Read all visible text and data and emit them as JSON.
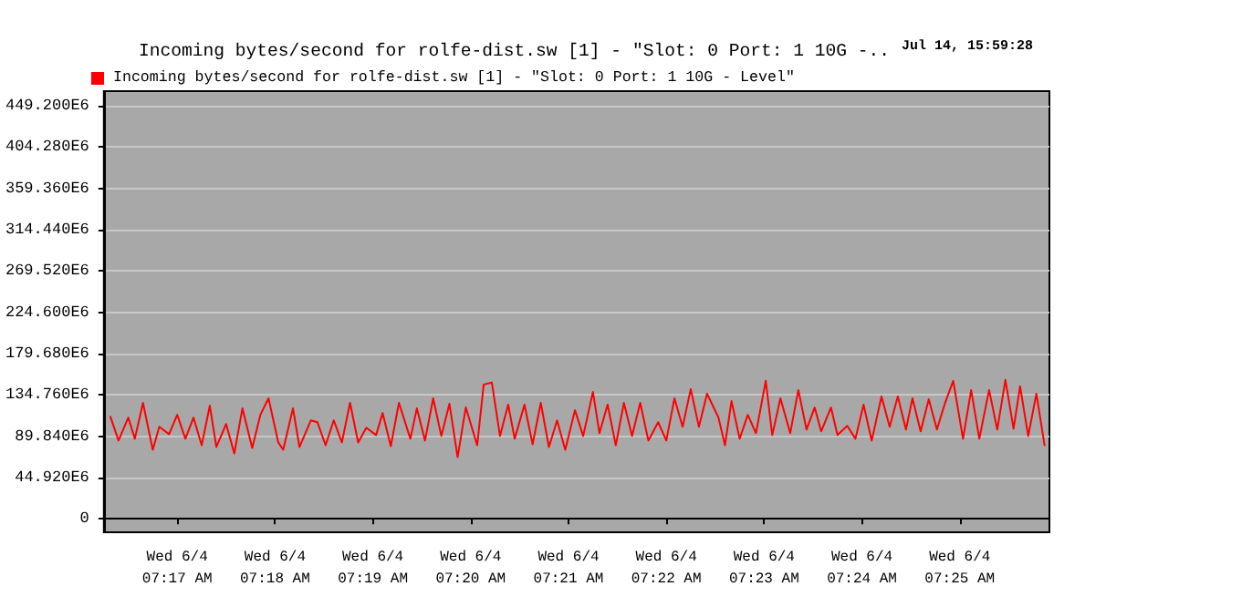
{
  "chart_data": {
    "type": "line",
    "title": "Incoming bytes/second for rolfe-dist.sw [1] - \"Slot: 0 Port: 1 10G -..",
    "annotations": [
      "Jul 14, 15:59:28"
    ],
    "legend": "top left",
    "grid": "y",
    "marker": "none",
    "line_style": "solid",
    "xlim": [
      "--06-04T07:16:15",
      "--06-04T07:25:55"
    ],
    "xticks": [
      {
        "value": "--06-04T07:17",
        "label": "Wed 6/4\n07:17 AM"
      },
      {
        "value": "--06-04T07:18",
        "label": "Wed 6/4\n07:18 AM"
      },
      {
        "value": "--06-04T07:19",
        "label": "Wed 6/4\n07:19 AM"
      },
      {
        "value": "--06-04T07:20",
        "label": "Wed 6/4\n07:20 AM"
      },
      {
        "value": "--06-04T07:21",
        "label": "Wed 6/4\n07:21 AM"
      },
      {
        "value": "--06-04T07:22",
        "label": "Wed 6/4\n07:22 AM"
      },
      {
        "value": "--06-04T07:23",
        "label": "Wed 6/4\n07:23 AM"
      },
      {
        "value": "--06-04T07:24",
        "label": "Wed 6/4\n07:24 AM"
      },
      {
        "value": "--06-04T07:25",
        "label": "Wed 6/4\n07:25 AM"
      }
    ],
    "ylim": [
      -14700000,
      465000000
    ],
    "yticks": [
      {
        "value": 0,
        "label": "0"
      },
      {
        "value": 44920000,
        "label": "44.920E6"
      },
      {
        "value": 89840000,
        "label": "89.840E6"
      },
      {
        "value": 134760000,
        "label": "134.760E6"
      },
      {
        "value": 179680000,
        "label": "179.680E6"
      },
      {
        "value": 224600000,
        "label": "224.600E6"
      },
      {
        "value": 269520000,
        "label": "269.520E6"
      },
      {
        "value": 314440000,
        "label": "314.440E6"
      },
      {
        "value": 359360000,
        "label": "359.360E6"
      },
      {
        "value": 404280000,
        "label": "404.280E6"
      },
      {
        "value": 449200000,
        "label": "449.200E6"
      }
    ],
    "series": [
      {
        "name": "Incoming bytes/second for rolfe-dist.sw [1] - \"Slot: 0 Port: 1 10G - Level\"",
        "color": "#ff0000",
        "x": [
          "--06-04T07:16:19",
          "--06-04T07:16:24",
          "--06-04T07:16:30",
          "--06-04T07:16:34",
          "--06-04T07:16:39",
          "--06-04T07:16:45",
          "--06-04T07:16:49",
          "--06-04T07:16:55",
          "--06-04T07:17:00",
          "--06-04T07:17:05",
          "--06-04T07:17:10",
          "--06-04T07:17:15",
          "--06-04T07:17:20",
          "--06-04T07:17:24",
          "--06-04T07:17:30",
          "--06-04T07:17:35",
          "--06-04T07:17:40",
          "--06-04T07:17:46",
          "--06-04T07:17:51",
          "--06-04T07:17:56",
          "--06-04T07:18:02",
          "--06-04T07:18:05",
          "--06-04T07:18:11",
          "--06-04T07:18:15",
          "--06-04T07:18:22",
          "--06-04T07:18:26",
          "--06-04T07:18:31",
          "--06-04T07:18:36",
          "--06-04T07:18:41",
          "--06-04T07:18:46",
          "--06-04T07:18:51",
          "--06-04T07:18:56",
          "--06-04T07:19:02",
          "--06-04T07:19:06",
          "--06-04T07:19:11",
          "--06-04T07:19:16",
          "--06-04T07:19:23",
          "--06-04T07:19:27",
          "--06-04T07:19:32",
          "--06-04T07:19:37",
          "--06-04T07:19:42",
          "--06-04T07:19:47",
          "--06-04T07:19:52",
          "--06-04T07:19:57",
          "--06-04T07:20:04",
          "--06-04T07:20:08",
          "--06-04T07:20:13",
          "--06-04T07:20:18",
          "--06-04T07:20:23",
          "--06-04T07:20:27",
          "--06-04T07:20:33",
          "--06-04T07:20:38",
          "--06-04T07:20:43",
          "--06-04T07:20:48",
          "--06-04T07:20:53",
          "--06-04T07:20:58",
          "--06-04T07:21:04",
          "--06-04T07:21:09",
          "--06-04T07:21:15",
          "--06-04T07:21:19",
          "--06-04T07:21:24",
          "--06-04T07:21:29",
          "--06-04T07:21:34",
          "--06-04T07:21:39",
          "--06-04T07:21:44",
          "--06-04T07:21:49",
          "--06-04T07:21:55",
          "--06-04T07:22:00",
          "--06-04T07:22:05",
          "--06-04T07:22:10",
          "--06-04T07:22:15",
          "--06-04T07:22:20",
          "--06-04T07:22:25",
          "--06-04T07:22:32",
          "--06-04T07:22:36",
          "--06-04T07:22:40",
          "--06-04T07:22:45",
          "--06-04T07:22:50",
          "--06-04T07:22:55",
          "--06-04T07:23:01",
          "--06-04T07:23:05",
          "--06-04T07:23:10",
          "--06-04T07:23:16",
          "--06-04T07:23:21",
          "--06-04T07:23:26",
          "--06-04T07:23:31",
          "--06-04T07:23:35",
          "--06-04T07:23:41",
          "--06-04T07:23:45",
          "--06-04T07:23:51",
          "--06-04T07:23:56",
          "--06-04T07:24:01",
          "--06-04T07:24:06",
          "--06-04T07:24:12",
          "--06-04T07:24:17",
          "--06-04T07:24:22",
          "--06-04T07:24:27",
          "--06-04T07:24:31",
          "--06-04T07:24:36",
          "--06-04T07:24:41",
          "--06-04T07:24:46",
          "--06-04T07:24:51",
          "--06-04T07:24:56",
          "--06-04T07:25:02",
          "--06-04T07:25:07",
          "--06-04T07:25:12",
          "--06-04T07:25:18",
          "--06-04T07:25:23",
          "--06-04T07:25:28",
          "--06-04T07:25:33",
          "--06-04T07:25:37",
          "--06-04T07:25:42",
          "--06-04T07:25:47",
          "--06-04T07:25:52"
        ],
        "values": [
          111000000,
          85000000,
          110000000,
          87000000,
          126000000,
          75000000,
          100000000,
          92000000,
          113000000,
          87000000,
          110000000,
          80000000,
          123000000,
          78000000,
          103000000,
          71000000,
          120000000,
          77000000,
          113000000,
          131000000,
          83000000,
          75000000,
          120000000,
          78000000,
          107000000,
          105000000,
          80000000,
          107000000,
          83000000,
          126000000,
          83000000,
          99000000,
          91000000,
          115000000,
          79000000,
          126000000,
          87000000,
          120000000,
          85000000,
          131000000,
          90000000,
          125000000,
          67000000,
          121000000,
          80000000,
          146000000,
          148000000,
          90000000,
          124000000,
          87000000,
          124000000,
          81000000,
          126000000,
          78000000,
          107000000,
          75000000,
          118000000,
          90000000,
          138000000,
          93000000,
          124000000,
          80000000,
          126000000,
          90000000,
          126000000,
          85000000,
          105000000,
          85000000,
          131000000,
          100000000,
          141000000,
          100000000,
          136000000,
          110000000,
          80000000,
          128000000,
          87000000,
          113000000,
          93000000,
          150000000,
          91000000,
          131000000,
          93000000,
          140000000,
          97000000,
          121000000,
          95000000,
          121000000,
          91000000,
          101000000,
          87000000,
          124000000,
          85000000,
          133000000,
          100000000,
          133000000,
          97000000,
          131000000,
          95000000,
          130000000,
          97000000,
          126000000,
          150000000,
          87000000,
          140000000,
          87000000,
          140000000,
          97000000,
          151000000,
          98000000,
          144000000,
          90000000,
          136000000,
          80000000
        ]
      }
    ]
  }
}
